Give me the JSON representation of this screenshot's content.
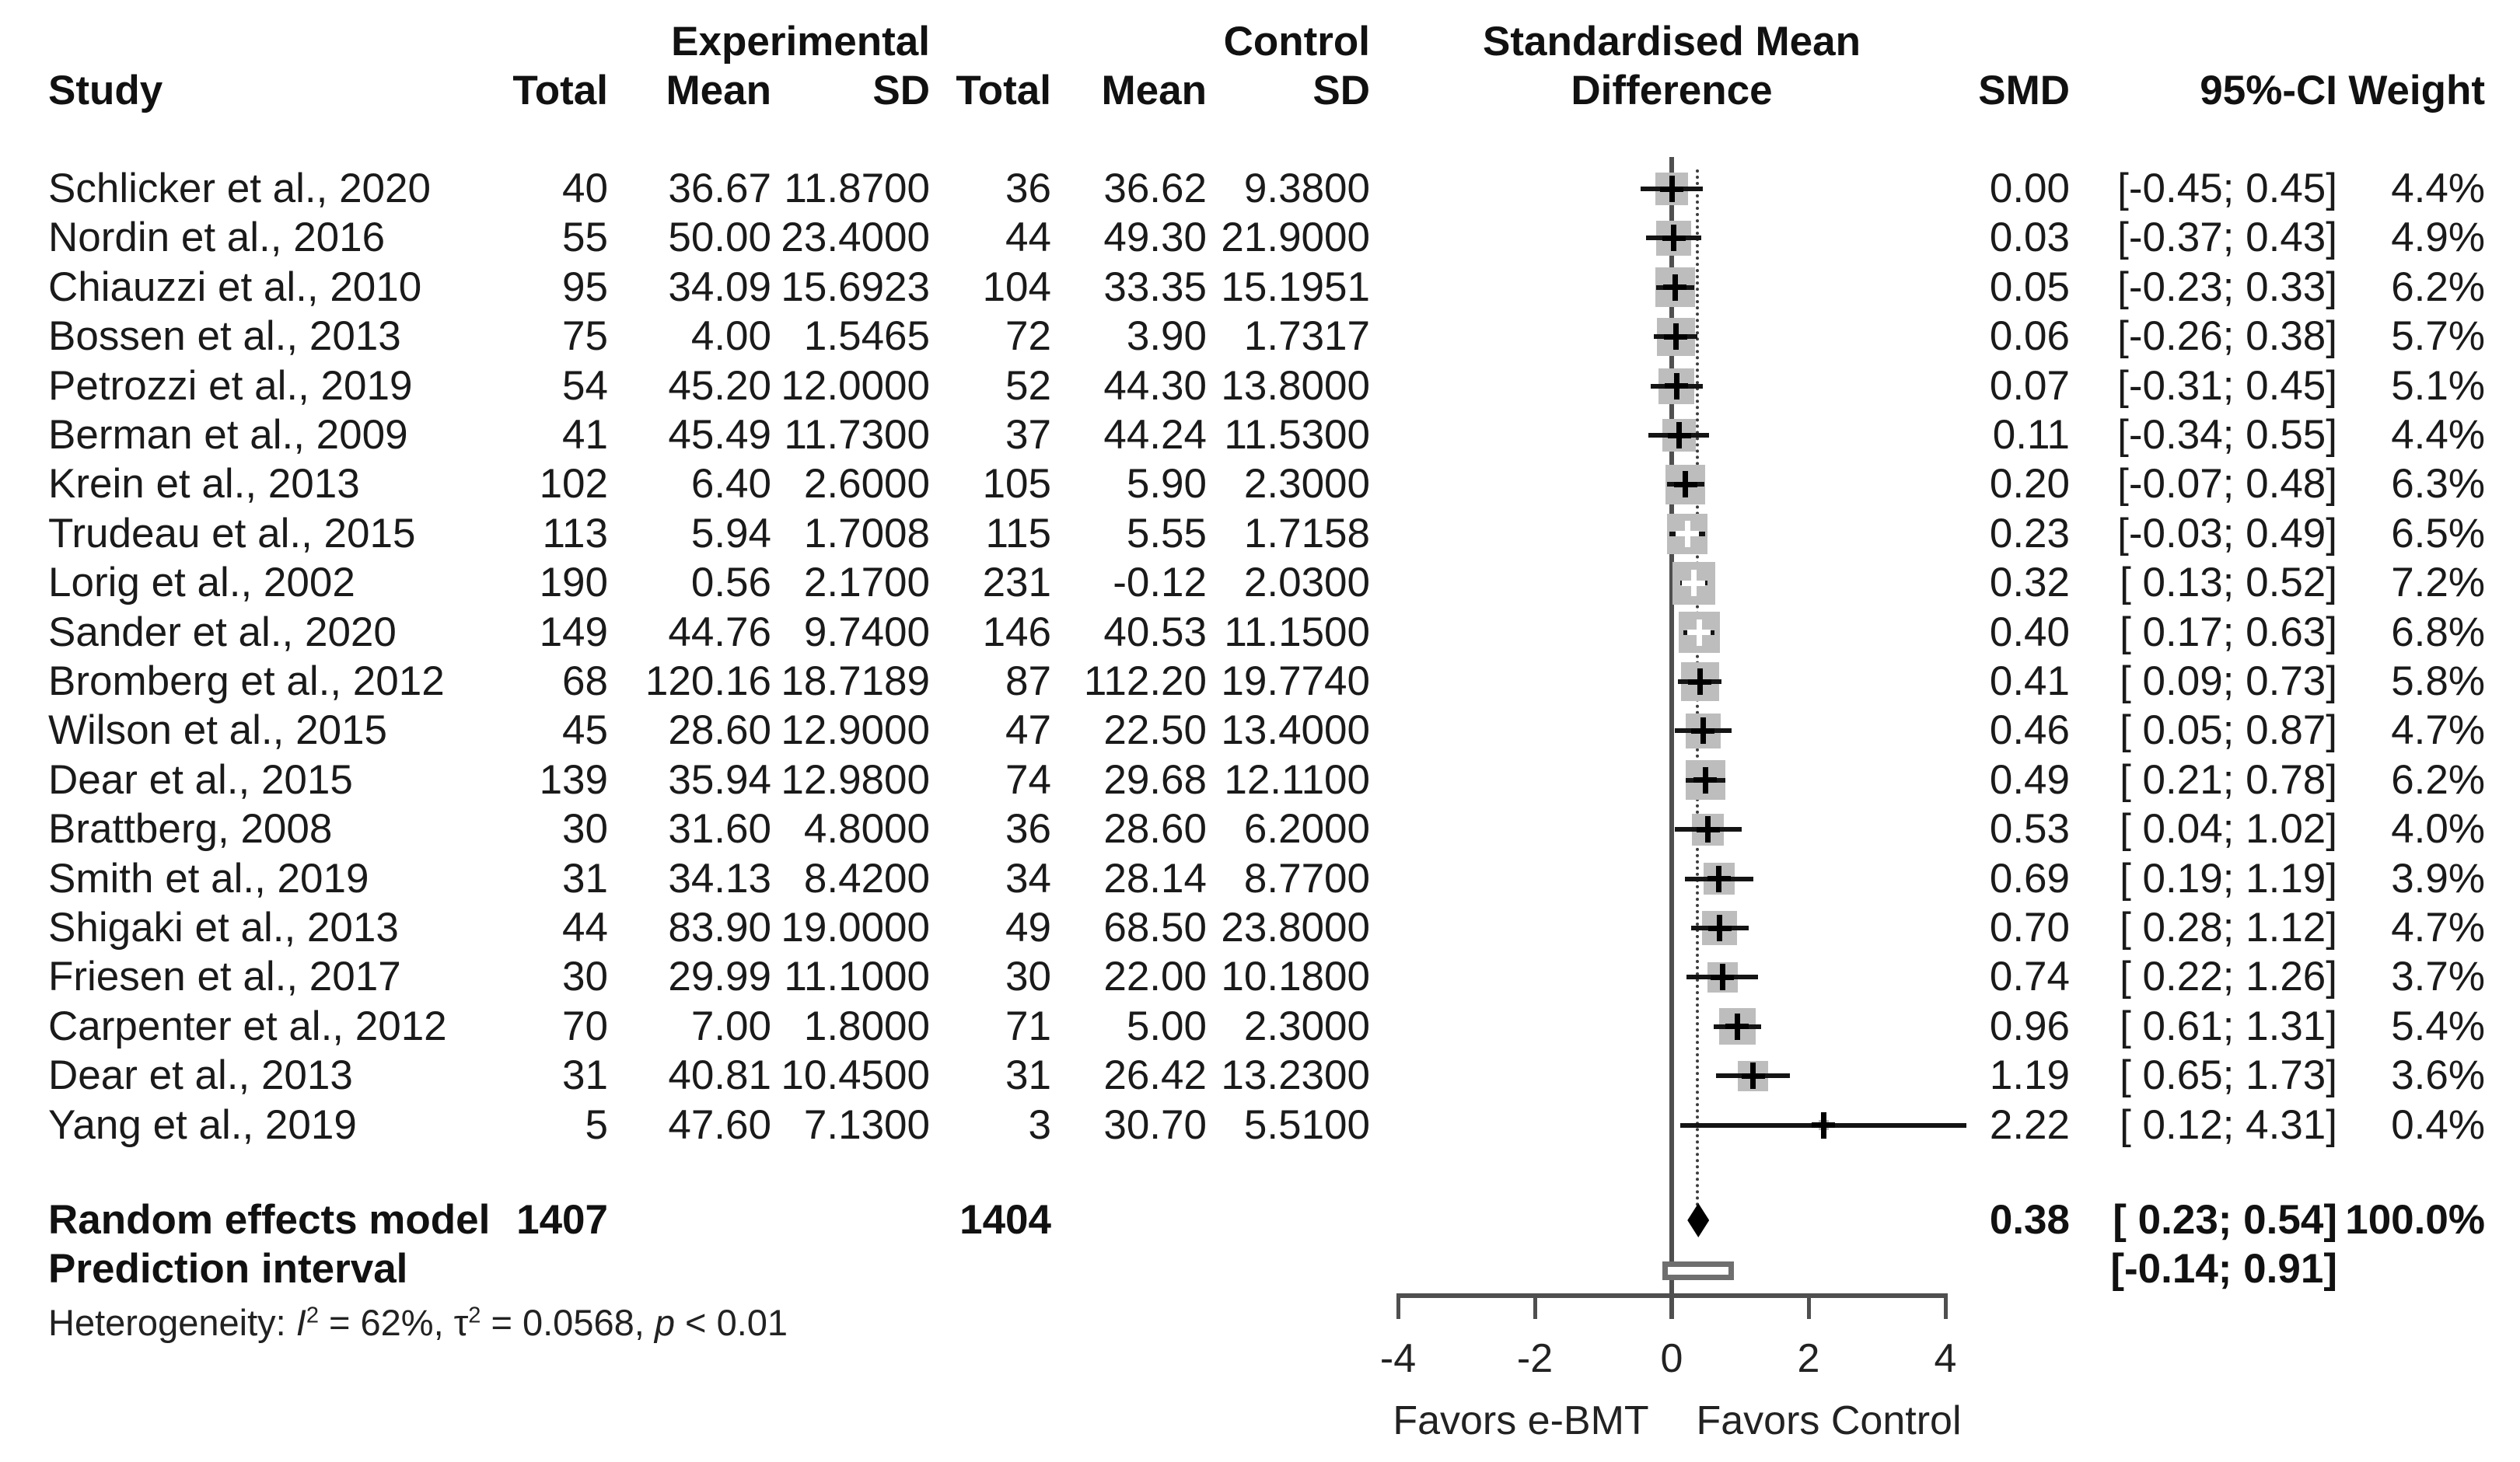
{
  "chart_data": {
    "type": "forest",
    "headers": {
      "group_experimental": "Experimental",
      "group_control": "Control",
      "title_line1": "Standardised Mean",
      "title_line2": "Difference",
      "name": "Study",
      "total_e": "Total",
      "mean_e": "Mean",
      "sd_e": "SD",
      "total_c": "Total",
      "mean_c": "Mean",
      "sd_c": "SD",
      "smd_text": "SMD",
      "ci_text": "95%-CI",
      "weight_text": "Weight"
    },
    "studies": [
      {
        "name": "Schlicker et al., 2020",
        "total_e": "40",
        "mean_e": "36.67",
        "sd_e": "11.8700",
        "total_c": "36",
        "mean_c": "36.62",
        "sd_c": "9.3800",
        "smd": 0.0,
        "smd_text": "0.00",
        "ci_lo": -0.45,
        "ci_hi": 0.45,
        "ci_text": "[-0.45; 0.45]",
        "weight": 4.4,
        "weight_text": "4.4%"
      },
      {
        "name": "Nordin et al., 2016",
        "total_e": "55",
        "mean_e": "50.00",
        "sd_e": "23.4000",
        "total_c": "44",
        "mean_c": "49.30",
        "sd_c": "21.9000",
        "smd": 0.03,
        "smd_text": "0.03",
        "ci_lo": -0.37,
        "ci_hi": 0.43,
        "ci_text": "[-0.37; 0.43]",
        "weight": 4.9,
        "weight_text": "4.9%"
      },
      {
        "name": "Chiauzzi et al., 2010",
        "total_e": "95",
        "mean_e": "34.09",
        "sd_e": "15.6923",
        "total_c": "104",
        "mean_c": "33.35",
        "sd_c": "15.1951",
        "smd": 0.05,
        "smd_text": "0.05",
        "ci_lo": -0.23,
        "ci_hi": 0.33,
        "ci_text": "[-0.23; 0.33]",
        "weight": 6.2,
        "weight_text": "6.2%"
      },
      {
        "name": "Bossen et al., 2013",
        "total_e": "75",
        "mean_e": "4.00",
        "sd_e": "1.5465",
        "total_c": "72",
        "mean_c": "3.90",
        "sd_c": "1.7317",
        "smd": 0.06,
        "smd_text": "0.06",
        "ci_lo": -0.26,
        "ci_hi": 0.38,
        "ci_text": "[-0.26; 0.38]",
        "weight": 5.7,
        "weight_text": "5.7%"
      },
      {
        "name": "Petrozzi et al., 2019",
        "total_e": "54",
        "mean_e": "45.20",
        "sd_e": "12.0000",
        "total_c": "52",
        "mean_c": "44.30",
        "sd_c": "13.8000",
        "smd": 0.07,
        "smd_text": "0.07",
        "ci_lo": -0.31,
        "ci_hi": 0.45,
        "ci_text": "[-0.31; 0.45]",
        "weight": 5.1,
        "weight_text": "5.1%"
      },
      {
        "name": "Berman et al., 2009",
        "total_e": "41",
        "mean_e": "45.49",
        "sd_e": "11.7300",
        "total_c": "37",
        "mean_c": "44.24",
        "sd_c": "11.5300",
        "smd": 0.11,
        "smd_text": "0.11",
        "ci_lo": -0.34,
        "ci_hi": 0.55,
        "ci_text": "[-0.34; 0.55]",
        "weight": 4.4,
        "weight_text": "4.4%"
      },
      {
        "name": "Krein et al., 2013",
        "total_e": "102",
        "mean_e": "6.40",
        "sd_e": "2.6000",
        "total_c": "105",
        "mean_c": "5.90",
        "sd_c": "2.3000",
        "smd": 0.2,
        "smd_text": "0.20",
        "ci_lo": -0.07,
        "ci_hi": 0.48,
        "ci_text": "[-0.07; 0.48]",
        "weight": 6.3,
        "weight_text": "6.3%"
      },
      {
        "name": "Trudeau et al., 2015",
        "total_e": "113",
        "mean_e": "5.94",
        "sd_e": "1.7008",
        "total_c": "115",
        "mean_c": "5.55",
        "sd_c": "1.7158",
        "smd": 0.23,
        "smd_text": "0.23",
        "ci_lo": -0.03,
        "ci_hi": 0.49,
        "ci_text": "[-0.03; 0.49]",
        "weight": 6.5,
        "weight_text": "6.5%"
      },
      {
        "name": "Lorig et al., 2002",
        "total_e": "190",
        "mean_e": "0.56",
        "sd_e": "2.1700",
        "total_c": "231",
        "mean_c": "-0.12",
        "sd_c": "2.0300",
        "smd": 0.32,
        "smd_text": "0.32",
        "ci_lo": 0.13,
        "ci_hi": 0.52,
        "ci_text": "[ 0.13; 0.52]",
        "weight": 7.2,
        "weight_text": "7.2%"
      },
      {
        "name": "Sander et al., 2020",
        "total_e": "149",
        "mean_e": "44.76",
        "sd_e": "9.7400",
        "total_c": "146",
        "mean_c": "40.53",
        "sd_c": "11.1500",
        "smd": 0.4,
        "smd_text": "0.40",
        "ci_lo": 0.17,
        "ci_hi": 0.63,
        "ci_text": "[ 0.17; 0.63]",
        "weight": 6.8,
        "weight_text": "6.8%"
      },
      {
        "name": "Bromberg et al., 2012",
        "total_e": "68",
        "mean_e": "120.16",
        "sd_e": "18.7189",
        "total_c": "87",
        "mean_c": "112.20",
        "sd_c": "19.7740",
        "smd": 0.41,
        "smd_text": "0.41",
        "ci_lo": 0.09,
        "ci_hi": 0.73,
        "ci_text": "[ 0.09; 0.73]",
        "weight": 5.8,
        "weight_text": "5.8%"
      },
      {
        "name": "Wilson et al., 2015",
        "total_e": "45",
        "mean_e": "28.60",
        "sd_e": "12.9000",
        "total_c": "47",
        "mean_c": "22.50",
        "sd_c": "13.4000",
        "smd": 0.46,
        "smd_text": "0.46",
        "ci_lo": 0.05,
        "ci_hi": 0.87,
        "ci_text": "[ 0.05; 0.87]",
        "weight": 4.7,
        "weight_text": "4.7%"
      },
      {
        "name": "Dear et al., 2015",
        "total_e": "139",
        "mean_e": "35.94",
        "sd_e": "12.9800",
        "total_c": "74",
        "mean_c": "29.68",
        "sd_c": "12.1100",
        "smd": 0.49,
        "smd_text": "0.49",
        "ci_lo": 0.21,
        "ci_hi": 0.78,
        "ci_text": "[ 0.21; 0.78]",
        "weight": 6.2,
        "weight_text": "6.2%"
      },
      {
        "name": "Brattberg, 2008",
        "total_e": "30",
        "mean_e": "31.60",
        "sd_e": "4.8000",
        "total_c": "36",
        "mean_c": "28.60",
        "sd_c": "6.2000",
        "smd": 0.53,
        "smd_text": "0.53",
        "ci_lo": 0.04,
        "ci_hi": 1.02,
        "ci_text": "[ 0.04; 1.02]",
        "weight": 4.0,
        "weight_text": "4.0%"
      },
      {
        "name": "Smith et al., 2019",
        "total_e": "31",
        "mean_e": "34.13",
        "sd_e": "8.4200",
        "total_c": "34",
        "mean_c": "28.14",
        "sd_c": "8.7700",
        "smd": 0.69,
        "smd_text": "0.69",
        "ci_lo": 0.19,
        "ci_hi": 1.19,
        "ci_text": "[ 0.19; 1.19]",
        "weight": 3.9,
        "weight_text": "3.9%"
      },
      {
        "name": "Shigaki et al., 2013",
        "total_e": "44",
        "mean_e": "83.90",
        "sd_e": "19.0000",
        "total_c": "49",
        "mean_c": "68.50",
        "sd_c": "23.8000",
        "smd": 0.7,
        "smd_text": "0.70",
        "ci_lo": 0.28,
        "ci_hi": 1.12,
        "ci_text": "[ 0.28; 1.12]",
        "weight": 4.7,
        "weight_text": "4.7%"
      },
      {
        "name": "Friesen et al., 2017",
        "total_e": "30",
        "mean_e": "29.99",
        "sd_e": "11.1000",
        "total_c": "30",
        "mean_c": "22.00",
        "sd_c": "10.1800",
        "smd": 0.74,
        "smd_text": "0.74",
        "ci_lo": 0.22,
        "ci_hi": 1.26,
        "ci_text": "[ 0.22; 1.26]",
        "weight": 3.7,
        "weight_text": "3.7%"
      },
      {
        "name": "Carpenter et al., 2012",
        "total_e": "70",
        "mean_e": "7.00",
        "sd_e": "1.8000",
        "total_c": "71",
        "mean_c": "5.00",
        "sd_c": "2.3000",
        "smd": 0.96,
        "smd_text": "0.96",
        "ci_lo": 0.61,
        "ci_hi": 1.31,
        "ci_text": "[ 0.61; 1.31]",
        "weight": 5.4,
        "weight_text": "5.4%"
      },
      {
        "name": "Dear et al., 2013",
        "total_e": "31",
        "mean_e": "40.81",
        "sd_e": "10.4500",
        "total_c": "31",
        "mean_c": "26.42",
        "sd_c": "13.2300",
        "smd": 1.19,
        "smd_text": "1.19",
        "ci_lo": 0.65,
        "ci_hi": 1.73,
        "ci_text": "[ 0.65; 1.73]",
        "weight": 3.6,
        "weight_text": "3.6%"
      },
      {
        "name": "Yang et al., 2019",
        "total_e": "5",
        "mean_e": "47.60",
        "sd_e": "7.1300",
        "total_c": "3",
        "mean_c": "30.70",
        "sd_c": "5.5100",
        "smd": 2.22,
        "smd_text": "2.22",
        "ci_lo": 0.12,
        "ci_hi": 4.31,
        "ci_text": "[ 0.12; 4.31]",
        "weight": 0.4,
        "weight_text": "0.4%"
      }
    ],
    "summary": {
      "random_effects": {
        "label": "Random effects model",
        "total_e": "1407",
        "total_c": "1404",
        "smd": 0.38,
        "smd_text": "0.38",
        "ci_lo": 0.23,
        "ci_hi": 0.54,
        "ci_text": "[ 0.23; 0.54]",
        "weight_text": "100.0%"
      },
      "prediction_interval": {
        "label": "Prediction interval",
        "ci_lo": -0.14,
        "ci_hi": 0.91,
        "ci_text": "[-0.14; 0.91]"
      }
    },
    "heterogeneity": {
      "prefix": "Heterogeneity: ",
      "i_sym": "I",
      "sup": "2",
      "i_val": " = 62%, ",
      "tau_sym": "τ",
      "tau_val": " = 0.0568, ",
      "p_sym": "p",
      "p_val": " < 0.01"
    },
    "axis": {
      "xmin": -4,
      "xmax": 4,
      "tick_values": [
        -4,
        -2,
        0,
        2,
        4
      ],
      "tick_labels": [
        "-4",
        "-2",
        "0",
        "2",
        "4"
      ],
      "favors_left": "Favors e-BMT",
      "favors_right": "Favors Control",
      "zero_line_at": 0,
      "dotted_line_at": 0.38
    },
    "colors": {
      "square": "#bdbdbd",
      "whisker": "#141414",
      "axis": "#4f4f4f",
      "zero_line": "#4f4f4f",
      "dotted_line": "#3c3c3c",
      "diamond": "#000000",
      "prediction_border": "#6f6f6f",
      "text": "#1a1a1a"
    }
  }
}
